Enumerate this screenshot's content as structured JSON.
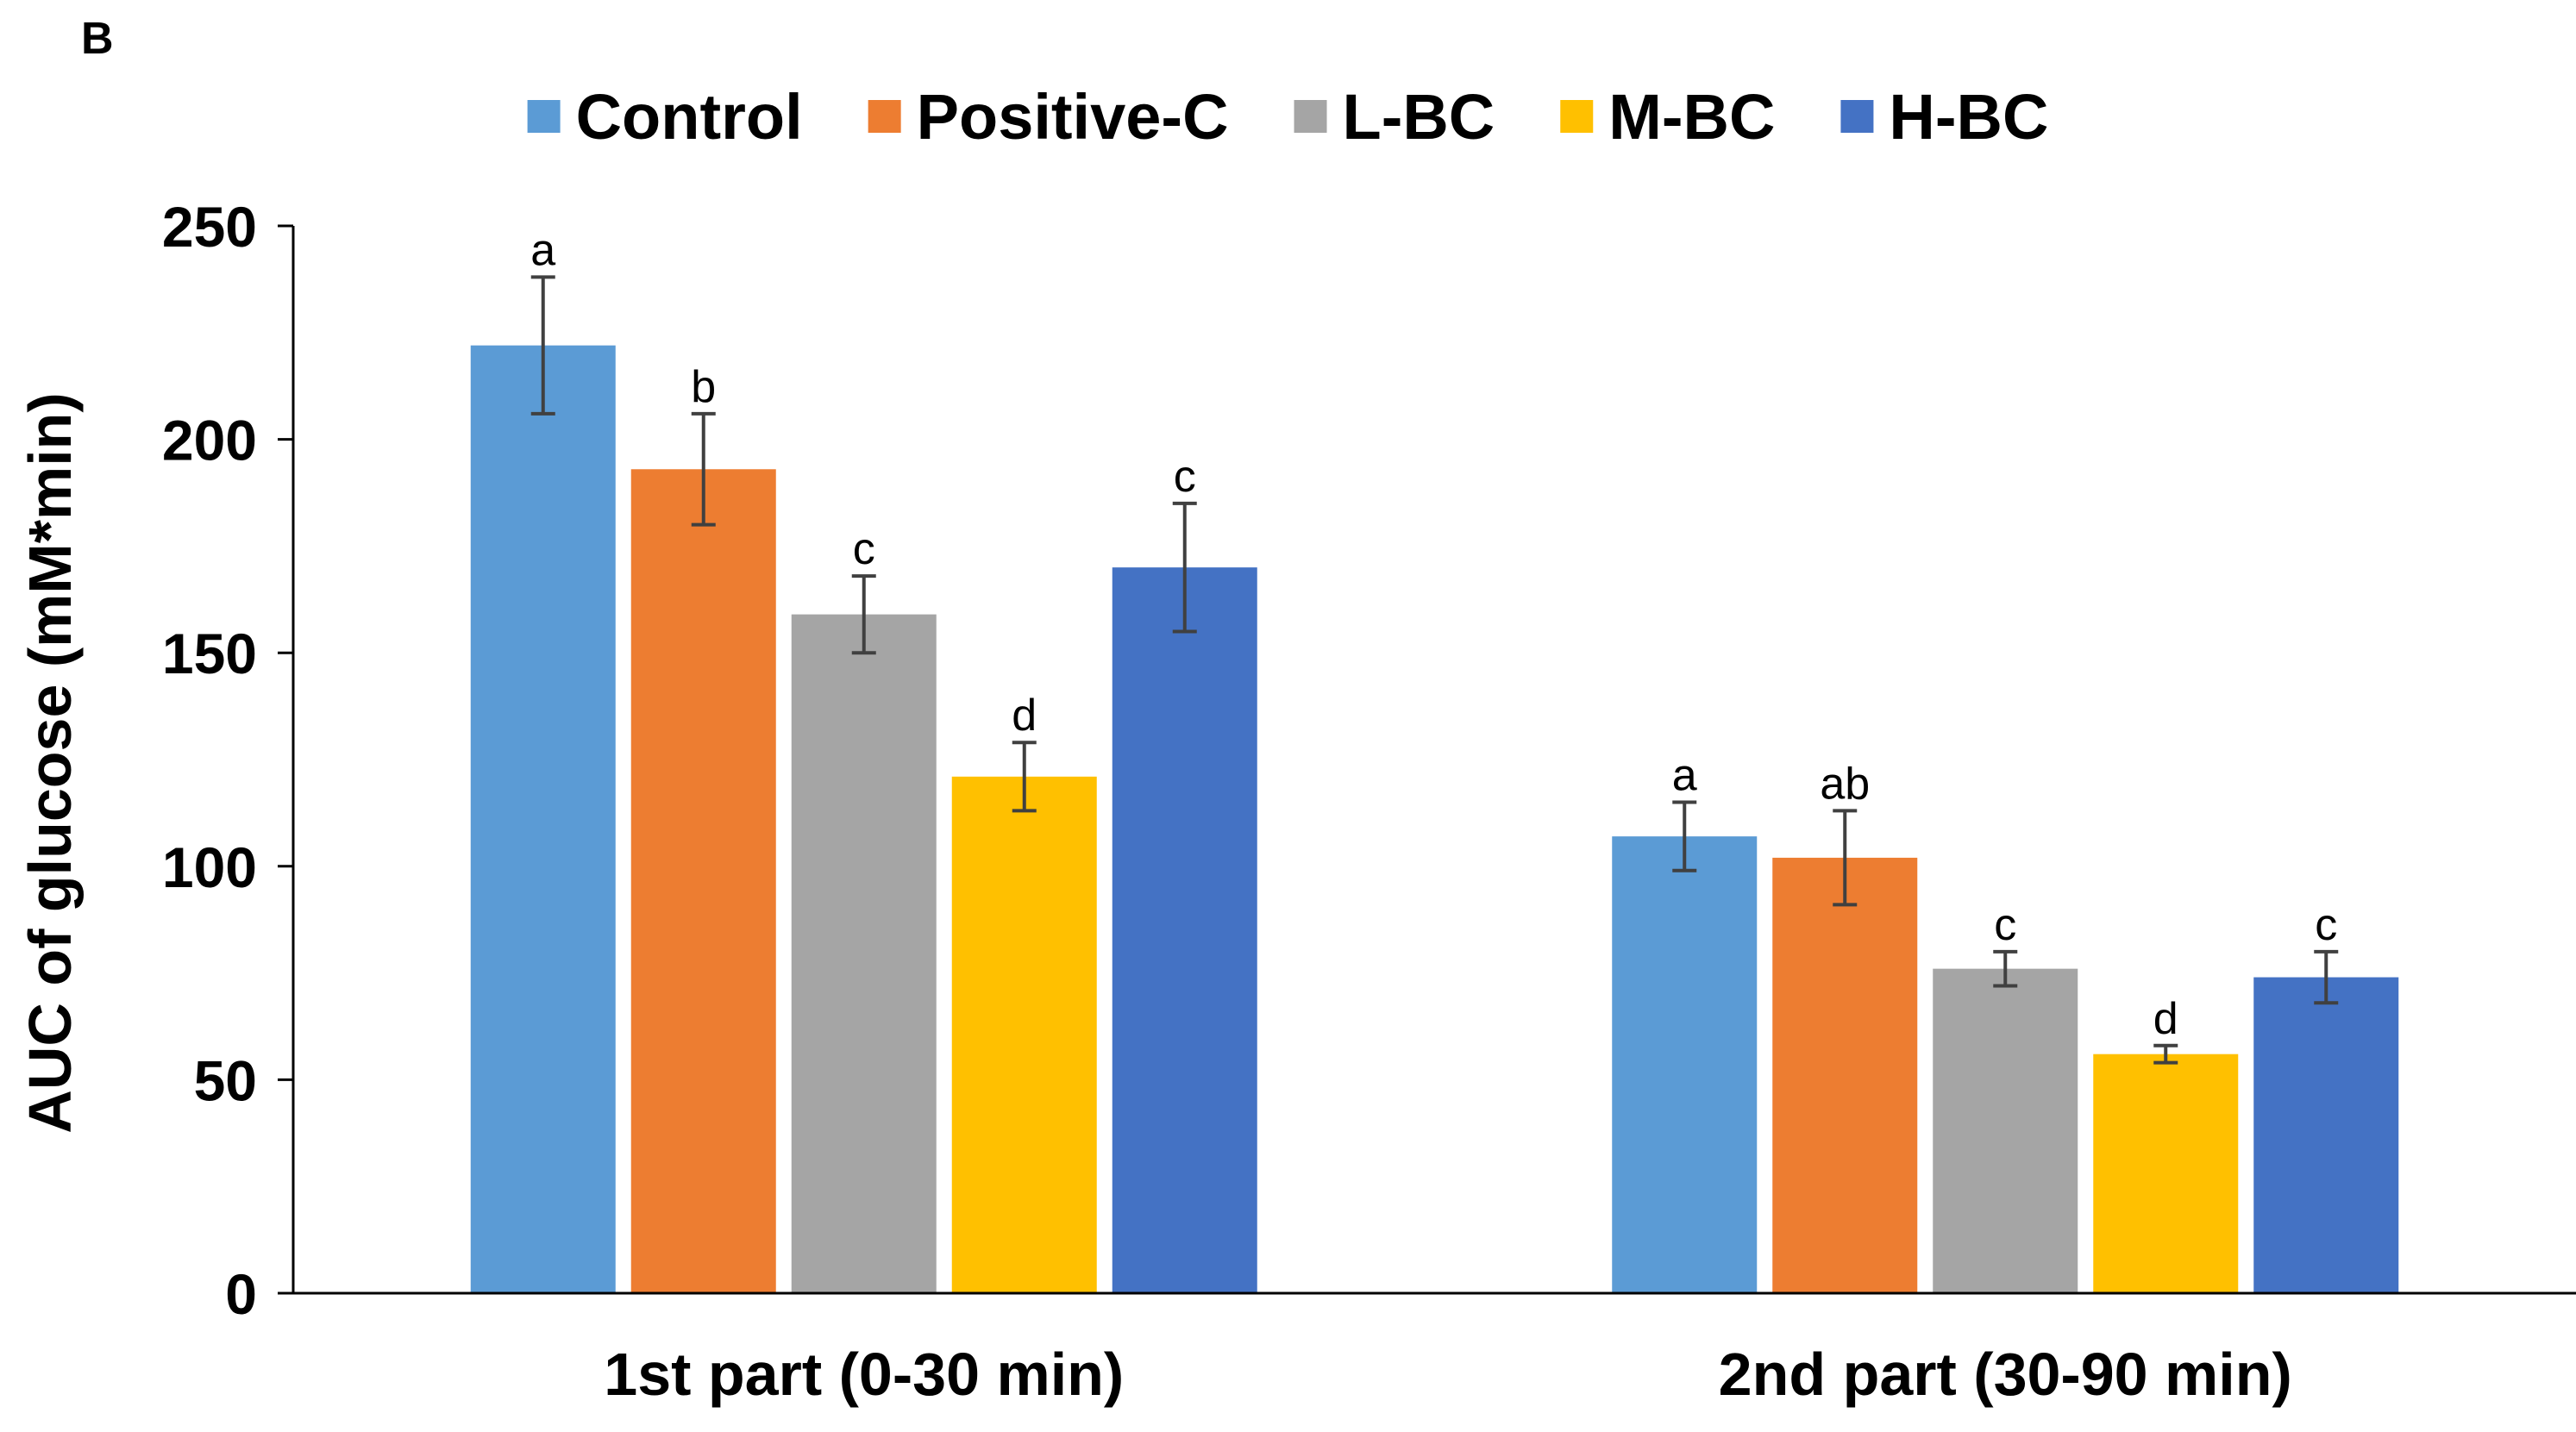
{
  "chart_data": {
    "type": "bar",
    "panel_label": "B",
    "title": "",
    "xlabel": "",
    "ylabel": "AUC of glucose (mM*min)",
    "ylim": [
      0,
      250
    ],
    "yticks": [
      "0",
      "50",
      "100",
      "150",
      "200",
      "250"
    ],
    "grid": false,
    "legend_position": "top",
    "categories": [
      "1st part (0-30 min)",
      "2nd part (30-90 min)"
    ],
    "series": [
      {
        "name": "Control",
        "color": "#5B9BD5",
        "values": [
          222,
          107
        ],
        "errors": [
          16,
          8
        ],
        "labels": [
          "a",
          "a"
        ]
      },
      {
        "name": "Positive-C",
        "color": "#ED7D31",
        "values": [
          193,
          102
        ],
        "errors": [
          13,
          11
        ],
        "labels": [
          "b",
          "ab"
        ]
      },
      {
        "name": "L-BC",
        "color": "#A5A5A5",
        "values": [
          159,
          76
        ],
        "errors": [
          9,
          4
        ],
        "labels": [
          "c",
          "c"
        ]
      },
      {
        "name": "M-BC",
        "color": "#FFC000",
        "values": [
          121,
          56
        ],
        "errors": [
          8,
          2
        ],
        "labels": [
          "d",
          "d"
        ]
      },
      {
        "name": "H-BC",
        "color": "#4472C4",
        "values": [
          170,
          74
        ],
        "errors": [
          15,
          6
        ],
        "labels": [
          "c",
          "c"
        ]
      }
    ]
  }
}
